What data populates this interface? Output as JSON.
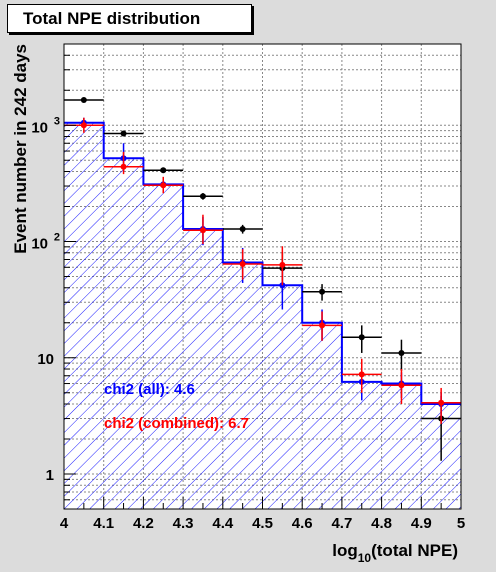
{
  "chart_data": {
    "type": "histogram",
    "title": "Total NPE distribution",
    "xlabel_main": "log",
    "xlabel_sub": "10",
    "xlabel_rest": "(total NPE)",
    "ylabel": "Event number in 242 days",
    "yscale": "log",
    "xlim": [
      4.0,
      5.0
    ],
    "ylim": [
      0.5,
      5000
    ],
    "grid": true,
    "x_ticks": [
      "4",
      "4.1",
      "4.2",
      "4.3",
      "4.4",
      "4.5",
      "4.6",
      "4.7",
      "4.8",
      "4.9",
      "5"
    ],
    "y_ticks": [
      {
        "value": 1,
        "label": "1"
      },
      {
        "value": 10,
        "label": "10"
      },
      {
        "value": 100,
        "label": "10",
        "exponent": "2"
      },
      {
        "value": 1000,
        "label": "10",
        "exponent": "3"
      }
    ],
    "bin_edges": [
      4.0,
      4.1,
      4.2,
      4.3,
      4.4,
      4.5,
      4.6,
      4.7,
      4.8,
      4.9,
      5.0
    ],
    "series": [
      {
        "kind": "histogram",
        "color": "#0000ff",
        "hatched": true,
        "values": [
          1050,
          520,
          310,
          128,
          66,
          42,
          20,
          6.2,
          6.0,
          4.0
        ]
      },
      {
        "kind": "points",
        "color": "#ff0000",
        "values": [
          1000,
          440,
          305,
          125,
          64,
          63,
          19,
          7.2,
          5.8,
          4.1
        ],
        "err_low": [
          140,
          60,
          45,
          30,
          17,
          21,
          5,
          2.2,
          1.8,
          1.4
        ],
        "err_high": [
          160,
          150,
          55,
          45,
          22,
          28,
          6,
          2.6,
          2.2,
          1.4
        ]
      },
      {
        "kind": "points",
        "color": "#000000",
        "values": [
          1650,
          850,
          410,
          245,
          128,
          59,
          37,
          15,
          11,
          3.0
        ],
        "err_low": [
          40,
          30,
          20,
          16,
          11,
          22,
          6,
          4,
          3.3,
          1.7
        ],
        "err_high": [
          40,
          30,
          20,
          16,
          11,
          22,
          6,
          4,
          3.3,
          1.7
        ]
      },
      {
        "kind": "points",
        "color": "#0000ff",
        "values": [
          1050,
          520,
          310,
          128,
          66,
          42,
          20,
          6.2,
          6.0,
          4.0
        ],
        "err_low": [
          110,
          120,
          40,
          35,
          22,
          16,
          6,
          1.9,
          1.5,
          1.0
        ],
        "err_high": [
          110,
          180,
          40,
          35,
          22,
          16,
          6,
          1.9,
          1.5,
          1.0
        ]
      }
    ],
    "annotations": [
      {
        "text": "chi2 (all): 4.6",
        "color": "#0000ff"
      },
      {
        "text": "chi2 (combined): 6.7",
        "color": "#ff0000"
      }
    ]
  }
}
